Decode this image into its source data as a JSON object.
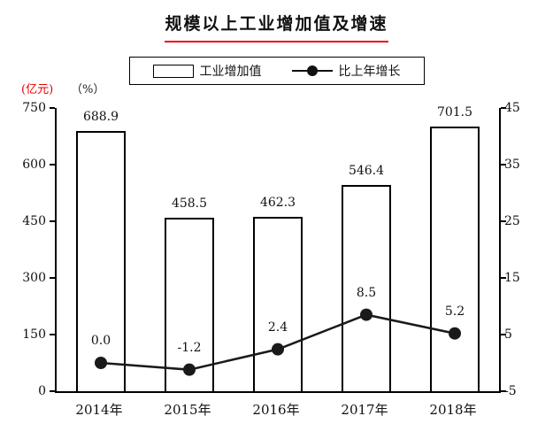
{
  "title": "规模以上工业增加值及增速",
  "left_unit": "(亿元)",
  "right_unit": "（%）",
  "legend": [
    {
      "label": "工业增加值",
      "swatch": "bar"
    },
    {
      "label": "比上年增长",
      "swatch": "line-dot"
    }
  ],
  "chart_data": {
    "type": "bar+line",
    "title": "规模以上工业增加值及增速",
    "categories": [
      "2014年",
      "2015年",
      "2016年",
      "2017年",
      "2018年"
    ],
    "series": [
      {
        "name": "工业增加值",
        "type": "bar",
        "axis": "left",
        "values": [
          688.9,
          458.5,
          462.3,
          546.4,
          701.5
        ]
      },
      {
        "name": "比上年增长",
        "type": "line",
        "axis": "right",
        "values": [
          0.0,
          -1.2,
          2.4,
          8.5,
          5.2
        ]
      }
    ],
    "left_axis": {
      "unit": "(亿元)",
      "min": 0,
      "max": 750,
      "ticks": [
        0,
        150,
        300,
        450,
        600,
        750
      ]
    },
    "right_axis": {
      "unit": "(%)",
      "min": -5,
      "max": 45,
      "ticks": [
        -5,
        5,
        15,
        25,
        35,
        45
      ]
    },
    "grid": false,
    "legend_position": "top",
    "colors": {
      "bar_fill": "#ffffff",
      "bar_border": "#000000",
      "line": "#1a1a1a",
      "marker": "#1a1a1a",
      "title_underline": "#f30000",
      "left_unit_text": "#e60000",
      "text": "#111111"
    }
  }
}
